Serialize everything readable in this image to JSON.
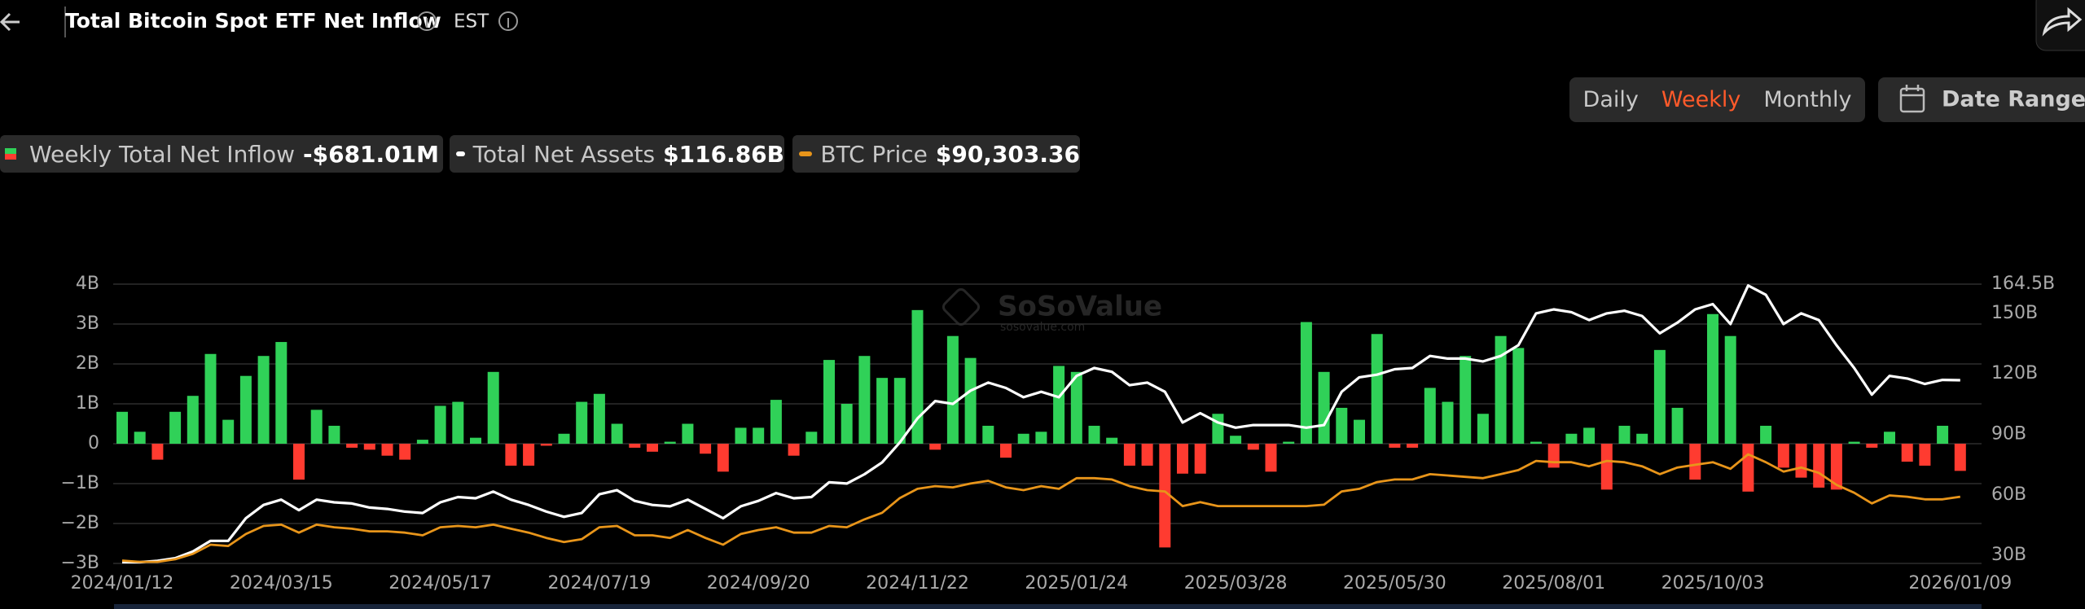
{
  "header": {
    "title": "Total Bitcoin Spot ETF Net Inflow",
    "timezone": "EST"
  },
  "controls": {
    "buttons": [
      {
        "label": "Daily",
        "active": false
      },
      {
        "label": "Weekly",
        "active": true
      },
      {
        "label": "Monthly",
        "active": false
      }
    ],
    "date_range": "Date Range"
  },
  "watermark": {
    "brand": "SoSoValue",
    "site": "sosovalue.com"
  },
  "chart_data": {
    "type": "combo",
    "categories": [
      "2024/01/12",
      null,
      null,
      null,
      null,
      null,
      null,
      null,
      null,
      "2024/03/15",
      null,
      null,
      null,
      null,
      null,
      null,
      null,
      null,
      "2024/05/17",
      null,
      null,
      null,
      null,
      null,
      null,
      null,
      null,
      "2024/07/19",
      null,
      null,
      null,
      null,
      null,
      null,
      null,
      null,
      "2024/09/20",
      null,
      null,
      null,
      null,
      null,
      null,
      null,
      null,
      "2024/11/22",
      null,
      null,
      null,
      null,
      null,
      null,
      null,
      null,
      "2025/01/24",
      null,
      null,
      null,
      null,
      null,
      null,
      null,
      null,
      "2025/03/28",
      null,
      null,
      null,
      null,
      null,
      null,
      null,
      null,
      "2025/05/30",
      null,
      null,
      null,
      null,
      null,
      null,
      null,
      null,
      "2025/08/01",
      null,
      null,
      null,
      null,
      null,
      null,
      null,
      null,
      "2025/10/03",
      null,
      null,
      null,
      null,
      null,
      null,
      null,
      null,
      null,
      null,
      null,
      null,
      null,
      "2026/01/09"
    ],
    "series": [
      {
        "name": "Weekly Total Net Inflow",
        "legend_value": "-$681.01M",
        "type": "bar",
        "axis": "y",
        "color": "#30d158",
        "negative_color": "#ff3b30",
        "values": [
          0.8,
          0.3,
          -0.4,
          0.8,
          1.2,
          2.25,
          0.6,
          1.7,
          2.2,
          2.55,
          -0.9,
          0.85,
          0.45,
          -0.1,
          -0.15,
          -0.3,
          -0.4,
          0.1,
          0.95,
          1.05,
          0.15,
          1.8,
          -0.55,
          -0.55,
          -0.05,
          0.25,
          1.05,
          1.25,
          0.5,
          -0.1,
          -0.2,
          0.05,
          0.5,
          -0.25,
          -0.7,
          0.4,
          0.4,
          1.1,
          -0.3,
          0.3,
          2.1,
          1.0,
          2.2,
          1.65,
          1.65,
          3.35,
          -0.15,
          2.7,
          2.15,
          0.45,
          -0.35,
          0.25,
          0.3,
          1.95,
          1.8,
          0.45,
          0.15,
          -0.55,
          -0.55,
          -2.6,
          -0.75,
          -0.75,
          0.75,
          0.2,
          -0.15,
          -0.7,
          0.05,
          3.05,
          1.8,
          0.9,
          0.6,
          2.75,
          -0.1,
          -0.1,
          1.4,
          1.05,
          2.2,
          0.75,
          2.7,
          2.4,
          0.05,
          -0.6,
          0.25,
          0.4,
          -1.15,
          0.45,
          0.25,
          2.35,
          0.9,
          -0.9,
          3.25,
          2.7,
          -1.2,
          0.45,
          -0.6,
          -0.85,
          -1.1,
          -1.15,
          0.05,
          -0.1,
          0.3,
          -0.45,
          -0.55,
          0.45,
          -0.68101
        ]
      },
      {
        "name": "Total Net Assets",
        "legend_value": "$116.86B",
        "type": "line",
        "axis": "y2",
        "color": "#ffffff",
        "values": [
          26.6,
          26.6,
          27.3,
          28.6,
          31.9,
          37.2,
          37.2,
          48.4,
          55.0,
          57.6,
          52.4,
          57.6,
          56.3,
          55.7,
          53.7,
          53.0,
          51.7,
          51.0,
          56.3,
          58.9,
          58.3,
          61.6,
          57.6,
          55.0,
          51.7,
          49.1,
          51.0,
          60.3,
          62.3,
          57.0,
          55.0,
          54.3,
          57.6,
          53.0,
          48.4,
          54.3,
          57.0,
          60.9,
          58.3,
          58.9,
          66.2,
          65.6,
          70.2,
          76.1,
          86.0,
          97.9,
          106.5,
          105.1,
          111.7,
          115.7,
          113.0,
          108.4,
          111.1,
          108.4,
          119.0,
          122.9,
          121.0,
          114.4,
          115.7,
          111.1,
          95.9,
          100.5,
          95.9,
          93.3,
          94.6,
          94.6,
          94.6,
          93.3,
          94.6,
          111.1,
          118.3,
          119.6,
          122.3,
          122.9,
          128.9,
          127.6,
          127.6,
          126.2,
          128.9,
          134.2,
          150.0,
          152.0,
          150.6,
          146.7,
          150.0,
          151.3,
          148.7,
          140.1,
          145.4,
          152.0,
          154.6,
          144.7,
          163.8,
          159.2,
          144.7,
          150.0,
          146.7,
          134.2,
          122.9,
          109.7,
          119.0,
          117.7,
          115.0,
          117.0,
          116.86
        ]
      },
      {
        "name": "BTC Price",
        "legend_value": "$90,303.36",
        "type": "line",
        "axis": "y3",
        "color": "#e8951a",
        "values": [
          46000,
          45100,
          45100,
          46900,
          50600,
          57000,
          56100,
          64400,
          70000,
          70900,
          65400,
          70900,
          69100,
          68100,
          66300,
          66300,
          65400,
          63500,
          69100,
          70000,
          69100,
          70900,
          68100,
          65400,
          61700,
          58900,
          60800,
          69100,
          70000,
          63500,
          63500,
          61700,
          67200,
          61700,
          57000,
          64400,
          67200,
          69100,
          65400,
          65400,
          70000,
          69100,
          74600,
          79200,
          89400,
          95800,
          97700,
          96800,
          99500,
          101400,
          96800,
          94900,
          97700,
          95800,
          103200,
          103200,
          102300,
          97700,
          94900,
          94000,
          83800,
          86600,
          83800,
          83800,
          83800,
          83800,
          83800,
          83800,
          84800,
          94000,
          95800,
          100500,
          102300,
          102300,
          106000,
          105100,
          104100,
          103200,
          106000,
          108800,
          115200,
          114300,
          114300,
          111500,
          115200,
          114300,
          111500,
          106000,
          110600,
          112500,
          114300,
          109700,
          119800,
          114300,
          107800,
          110600,
          106900,
          98600,
          93100,
          85700,
          91200,
          90303.36,
          88500,
          88500,
          90303.36
        ]
      }
    ],
    "ylim": [
      -3,
      4
    ],
    "yticks": [
      {
        "value": -3,
        "label": "−3B"
      },
      {
        "value": -2,
        "label": "−2B"
      },
      {
        "value": -1,
        "label": "−1B"
      },
      0,
      {
        "value": 1,
        "label": "1B"
      },
      {
        "value": 2,
        "label": "2B"
      },
      {
        "value": 3,
        "label": "3B"
      },
      {
        "value": 4,
        "label": "4B"
      }
    ],
    "y2lim": [
      26,
      164.5
    ],
    "y2ticks": [
      {
        "value": 30,
        "label": "30B"
      },
      {
        "value": 60,
        "label": "60B"
      },
      {
        "value": 90,
        "label": "90B"
      },
      {
        "value": 120,
        "label": "120B"
      },
      {
        "value": 150,
        "label": "150B"
      },
      {
        "value": 164.5,
        "label": "164.5B"
      }
    ],
    "y3lim": [
      44000,
      238000
    ],
    "grid": true
  }
}
